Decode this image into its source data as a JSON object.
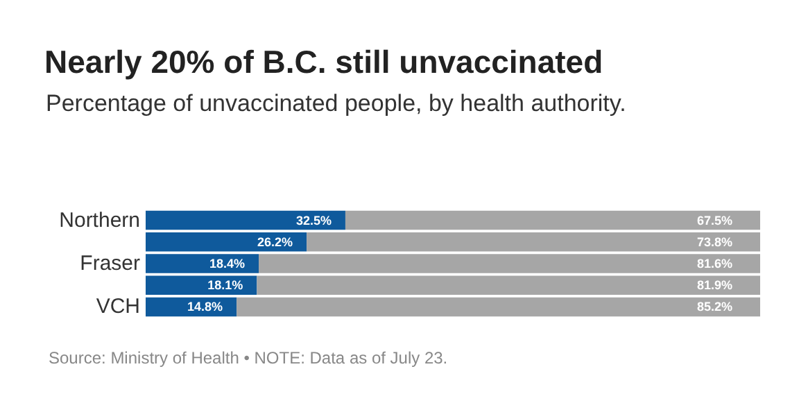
{
  "chart_data": {
    "type": "bar",
    "orientation": "horizontal",
    "stacked": true,
    "title": "Nearly 20% of B.C. still unvaccinated",
    "subtitle": "Percentage of unvaccinated people, by health authority.",
    "categories": [
      "Northern",
      null,
      "Fraser",
      null,
      "VCH"
    ],
    "series": [
      {
        "color": "#0f5a9c",
        "values": [
          32.5,
          26.2,
          18.4,
          18.1,
          14.8
        ],
        "value_labels": [
          "32.5%",
          "26.2%",
          "18.4%",
          "18.1%",
          "14.8%"
        ]
      },
      {
        "color": "#a6a6a6",
        "values": [
          67.5,
          73.8,
          81.6,
          81.9,
          85.2
        ],
        "value_labels": [
          "67.5%",
          "73.8%",
          "81.6%",
          "81.9%",
          "85.2%"
        ]
      }
    ],
    "xlim": [
      0,
      100
    ],
    "tick_labels": "y",
    "annotations": [
      "Source: Ministry of Health • NOTE: Data as of July 23."
    ]
  }
}
